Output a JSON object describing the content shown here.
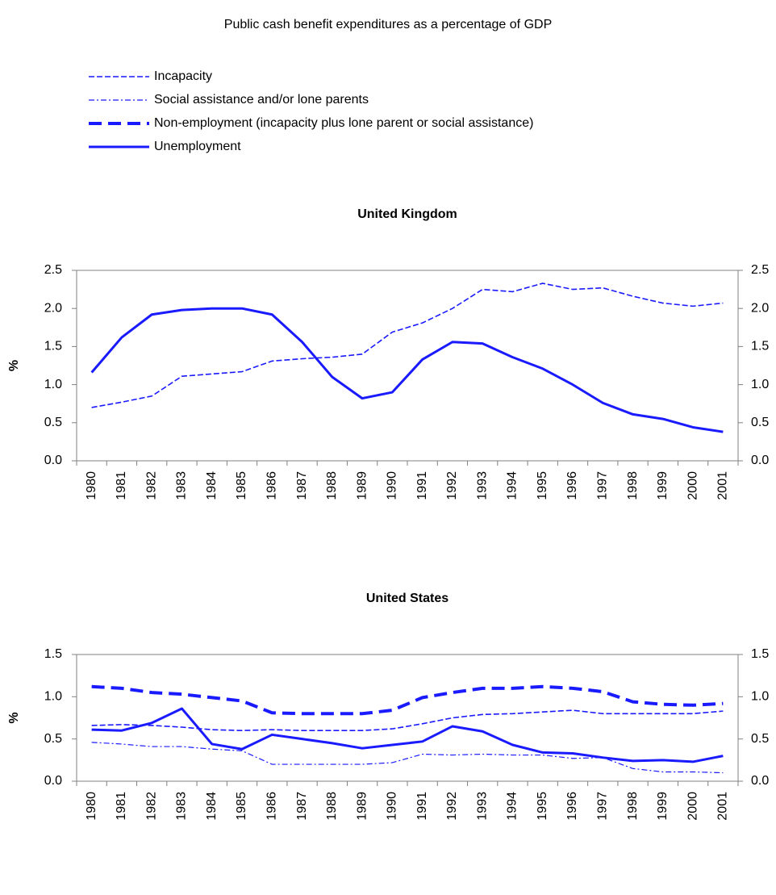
{
  "title": "Public cash benefit expenditures as a percentage of GDP",
  "chart_data": [
    {
      "type": "line",
      "title": "United Kingdom",
      "ylabel": "%",
      "categories": [
        "1980",
        "1981",
        "1982",
        "1983",
        "1984",
        "1985",
        "1986",
        "1987",
        "1988",
        "1989",
        "1990",
        "1991",
        "1992",
        "1993",
        "1994",
        "1995",
        "1996",
        "1997",
        "1998",
        "1999",
        "2000",
        "2001"
      ],
      "ylim": [
        0,
        2.5
      ],
      "yticks": [
        {
          "value": 0,
          "label": "0.0"
        },
        0.5,
        {
          "value": 1,
          "label": "1.0"
        },
        1.5,
        {
          "value": 2,
          "label": "2.0"
        },
        2.5
      ],
      "series": [
        {
          "name": "Incapacity",
          "color": "#1a1aff",
          "style": "dashed",
          "values": [
            0.7,
            0.77,
            0.85,
            1.11,
            1.14,
            1.17,
            1.31,
            1.34,
            1.36,
            1.4,
            1.69,
            1.81,
            2.0,
            2.25,
            2.22,
            2.33,
            2.25,
            2.27,
            2.16,
            2.07,
            2.03,
            2.07
          ]
        },
        {
          "name": "Unemployment",
          "color": "#1a1aff",
          "style": "solid",
          "values": [
            1.16,
            1.62,
            1.92,
            1.98,
            2.0,
            2.0,
            1.92,
            1.56,
            1.1,
            0.82,
            0.9,
            1.33,
            1.56,
            1.54,
            1.36,
            1.21,
            1.0,
            0.76,
            0.61,
            0.55,
            0.44,
            0.38
          ]
        }
      ]
    },
    {
      "type": "line",
      "title": "United States",
      "ylabel": "%",
      "categories": [
        "1980",
        "1981",
        "1982",
        "1983",
        "1984",
        "1985",
        "1986",
        "1987",
        "1988",
        "1989",
        "1990",
        "1991",
        "1992",
        "1993",
        "1994",
        "1995",
        "1996",
        "1997",
        "1998",
        "1999",
        "2000",
        "2001"
      ],
      "ylim": [
        0,
        1.5
      ],
      "yticks": [
        {
          "value": 0,
          "label": "0.0"
        },
        0.5,
        {
          "value": 1,
          "label": "1.0"
        },
        1.5
      ],
      "series": [
        {
          "name": "Incapacity",
          "color": "#1a1aff",
          "style": "dashed",
          "values": [
            0.66,
            0.67,
            0.66,
            0.64,
            0.61,
            0.6,
            0.61,
            0.6,
            0.6,
            0.6,
            0.62,
            0.68,
            0.75,
            0.79,
            0.8,
            0.82,
            0.84,
            0.8,
            0.8,
            0.8,
            0.8,
            0.83
          ]
        },
        {
          "name": "Social assistance and/or lone parents",
          "color": "#1a1aff",
          "style": "dashdot",
          "values": [
            0.46,
            0.44,
            0.41,
            0.41,
            0.38,
            0.36,
            0.2,
            0.2,
            0.2,
            0.2,
            0.22,
            0.32,
            0.31,
            0.32,
            0.31,
            0.31,
            0.27,
            0.28,
            0.15,
            0.11,
            0.11,
            0.1
          ]
        },
        {
          "name": "Non-employment (incapacity plus lone parent or social assistance)",
          "color": "#1a1aff",
          "style": "longdash",
          "values": [
            1.12,
            1.1,
            1.05,
            1.03,
            0.99,
            0.95,
            0.81,
            0.8,
            0.8,
            0.8,
            0.84,
            0.99,
            1.05,
            1.1,
            1.1,
            1.12,
            1.1,
            1.06,
            0.94,
            0.91,
            0.9,
            0.92
          ]
        },
        {
          "name": "Unemployment",
          "color": "#1a1aff",
          "style": "solid",
          "values": [
            0.61,
            0.6,
            0.69,
            0.86,
            0.44,
            0.38,
            0.55,
            0.5,
            0.45,
            0.39,
            0.43,
            0.47,
            0.65,
            0.59,
            0.43,
            0.34,
            0.33,
            0.28,
            0.24,
            0.25,
            0.23,
            0.3
          ]
        }
      ]
    }
  ]
}
